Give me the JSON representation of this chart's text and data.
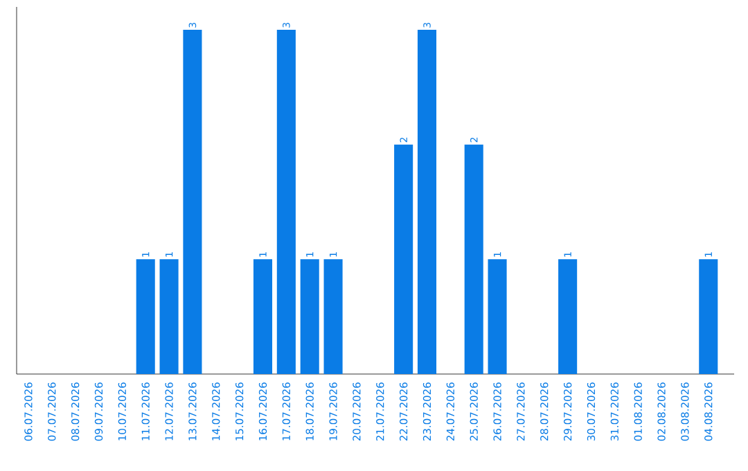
{
  "chart_data": {
    "type": "bar",
    "color": "#0a7ce6",
    "categories": [
      "06.07.2026",
      "07.07.2026",
      "08.07.2026",
      "09.07.2026",
      "10.07.2026",
      "11.07.2026",
      "12.07.2026",
      "13.07.2026",
      "14.07.2026",
      "15.07.2026",
      "16.07.2026",
      "17.07.2026",
      "18.07.2026",
      "19.07.2026",
      "20.07.2026",
      "21.07.2026",
      "22.07.2026",
      "23.07.2026",
      "24.07.2026",
      "25.07.2026",
      "26.07.2026",
      "27.07.2026",
      "28.07.2026",
      "29.07.2026",
      "30.07.2026",
      "31.07.2026",
      "01.08.2026",
      "02.08.2026",
      "03.08.2026",
      "04.08.2026"
    ],
    "values": [
      0,
      0,
      0,
      0,
      0,
      1,
      1,
      3,
      0,
      0,
      1,
      3,
      1,
      1,
      0,
      0,
      2,
      3,
      0,
      2,
      1,
      0,
      0,
      1,
      0,
      0,
      0,
      0,
      0,
      1
    ],
    "value_labels": [
      null,
      null,
      null,
      null,
      null,
      "1",
      "1",
      "3",
      null,
      null,
      "1",
      "3",
      "1",
      "1",
      null,
      null,
      "2",
      "3",
      null,
      "2",
      "1",
      null,
      null,
      "1",
      null,
      null,
      null,
      null,
      null,
      "1"
    ],
    "ylim": [
      0,
      3.2
    ]
  }
}
